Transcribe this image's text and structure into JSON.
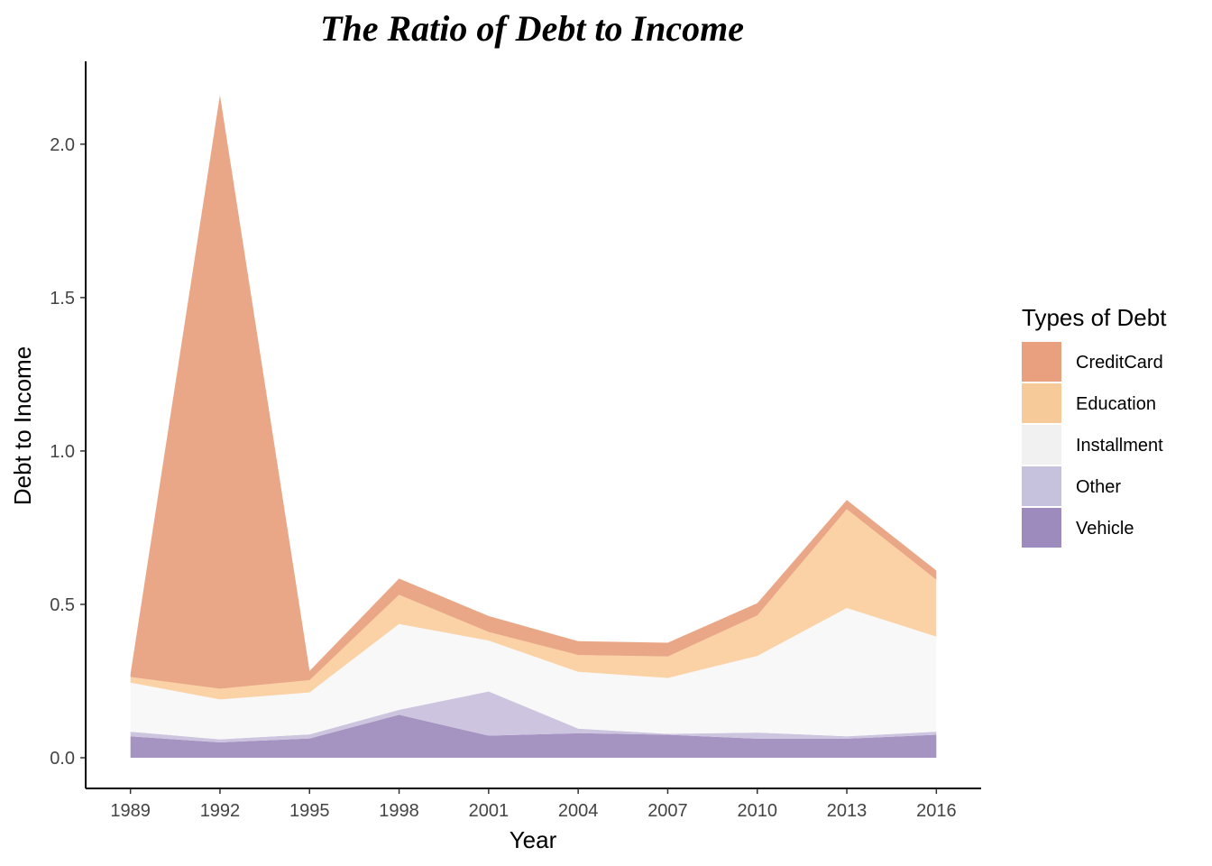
{
  "chart_data": {
    "type": "area",
    "title": "The Ratio of Debt to Income",
    "xlabel": "Year",
    "ylabel": "Debt to Income",
    "x": [
      1989,
      1992,
      1995,
      1998,
      2001,
      2004,
      2007,
      2010,
      2013,
      2016
    ],
    "xlim": [
      1987.5,
      2017.5
    ],
    "ylim": [
      -0.1,
      2.27
    ],
    "yticks": [
      0.0,
      0.5,
      1.0,
      1.5,
      2.0
    ],
    "ytick_labels": [
      "0.0",
      "0.5",
      "1.0",
      "1.5",
      "2.0"
    ],
    "xtick_labels": [
      "1989",
      "1992",
      "1995",
      "1998",
      "2001",
      "2004",
      "2007",
      "2010",
      "2013",
      "2016"
    ],
    "stacked": true,
    "grid": false,
    "legend_position": "right",
    "legend_title": "Types of Debt",
    "series": [
      {
        "name": "Vehicle",
        "color": "#9e8bbd",
        "values": [
          0.07,
          0.05,
          0.063,
          0.14,
          0.072,
          0.08,
          0.075,
          0.062,
          0.062,
          0.075
        ]
      },
      {
        "name": "Other",
        "color": "#c9c1dd",
        "values": [
          0.015,
          0.01,
          0.013,
          0.016,
          0.144,
          0.015,
          0.003,
          0.02,
          0.008,
          0.01
        ]
      },
      {
        "name": "Installment",
        "color": "#f7f7f7",
        "values": [
          0.16,
          0.13,
          0.137,
          0.28,
          0.166,
          0.185,
          0.182,
          0.25,
          0.418,
          0.31
        ]
      },
      {
        "name": "Education",
        "color": "#fbcf9f",
        "values": [
          0.018,
          0.035,
          0.04,
          0.095,
          0.028,
          0.055,
          0.07,
          0.132,
          0.322,
          0.185
        ]
      },
      {
        "name": "CreditCard",
        "color": "#e8a07e",
        "values": [
          0.01,
          1.935,
          0.03,
          0.053,
          0.052,
          0.045,
          0.045,
          0.04,
          0.03,
          0.03
        ]
      }
    ],
    "legend_order": [
      "CreditCard",
      "Education",
      "Installment",
      "Other",
      "Vehicle"
    ],
    "legend_colors": [
      "#e8a07e",
      "#f7ca99",
      "#f1f1f1",
      "#c6c1dc",
      "#9e8bbd"
    ]
  }
}
